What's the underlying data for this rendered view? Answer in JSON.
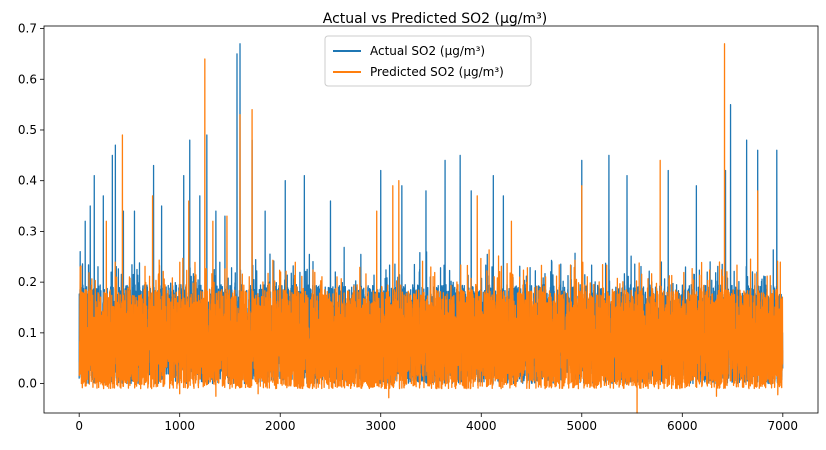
{
  "chart_data": {
    "type": "line",
    "title": "Actual vs Predicted SO2 (µg/m³)",
    "xlabel": "",
    "ylabel": "",
    "xlim": [
      -350,
      7350
    ],
    "ylim": [
      -0.058,
      0.705
    ],
    "x_ticks": [
      0,
      1000,
      2000,
      3000,
      4000,
      5000,
      6000,
      7000
    ],
    "x_tick_labels": [
      "0",
      "1000",
      "2000",
      "3000",
      "4000",
      "5000",
      "6000",
      "7000"
    ],
    "y_ticks": [
      0.0,
      0.1,
      0.2,
      0.3,
      0.4,
      0.5,
      0.6,
      0.7
    ],
    "y_tick_labels": [
      "0.0",
      "0.1",
      "0.2",
      "0.3",
      "0.4",
      "0.5",
      "0.6",
      "0.7"
    ],
    "grid": false,
    "legend_position": "top-center",
    "series": [
      {
        "name": "Actual SO2 (µg/m³)",
        "color": "#1f77b4",
        "n_points": 7000,
        "baseline_range": [
          0.0,
          0.26
        ],
        "peaks": [
          {
            "x": 10,
            "y": 0.26
          },
          {
            "x": 60,
            "y": 0.32
          },
          {
            "x": 110,
            "y": 0.35
          },
          {
            "x": 150,
            "y": 0.41
          },
          {
            "x": 240,
            "y": 0.37
          },
          {
            "x": 330,
            "y": 0.45
          },
          {
            "x": 360,
            "y": 0.47
          },
          {
            "x": 440,
            "y": 0.34
          },
          {
            "x": 550,
            "y": 0.34
          },
          {
            "x": 740,
            "y": 0.43
          },
          {
            "x": 820,
            "y": 0.35
          },
          {
            "x": 1040,
            "y": 0.41
          },
          {
            "x": 1100,
            "y": 0.48
          },
          {
            "x": 1200,
            "y": 0.37
          },
          {
            "x": 1270,
            "y": 0.49
          },
          {
            "x": 1360,
            "y": 0.34
          },
          {
            "x": 1450,
            "y": 0.33
          },
          {
            "x": 1570,
            "y": 0.65
          },
          {
            "x": 1600,
            "y": 0.67
          },
          {
            "x": 1720,
            "y": 0.48
          },
          {
            "x": 1850,
            "y": 0.34
          },
          {
            "x": 2050,
            "y": 0.4
          },
          {
            "x": 2240,
            "y": 0.41
          },
          {
            "x": 2500,
            "y": 0.36
          },
          {
            "x": 3000,
            "y": 0.42
          },
          {
            "x": 3210,
            "y": 0.39
          },
          {
            "x": 3450,
            "y": 0.38
          },
          {
            "x": 3640,
            "y": 0.44
          },
          {
            "x": 3790,
            "y": 0.45
          },
          {
            "x": 3900,
            "y": 0.38
          },
          {
            "x": 4120,
            "y": 0.41
          },
          {
            "x": 4220,
            "y": 0.37
          },
          {
            "x": 5000,
            "y": 0.44
          },
          {
            "x": 5270,
            "y": 0.45
          },
          {
            "x": 5450,
            "y": 0.41
          },
          {
            "x": 5860,
            "y": 0.42
          },
          {
            "x": 6140,
            "y": 0.39
          },
          {
            "x": 6430,
            "y": 0.42
          },
          {
            "x": 6480,
            "y": 0.55
          },
          {
            "x": 6640,
            "y": 0.48
          },
          {
            "x": 6750,
            "y": 0.46
          },
          {
            "x": 6940,
            "y": 0.46
          }
        ]
      },
      {
        "name": "Predicted SO2 (µg/m³)",
        "color": "#ff7f0e",
        "n_points": 7000,
        "baseline_range": [
          -0.01,
          0.25
        ],
        "peaks": [
          {
            "x": 10,
            "y": 0.23
          },
          {
            "x": 270,
            "y": 0.32
          },
          {
            "x": 430,
            "y": 0.49
          },
          {
            "x": 730,
            "y": 0.37
          },
          {
            "x": 1090,
            "y": 0.36
          },
          {
            "x": 1250,
            "y": 0.64
          },
          {
            "x": 1330,
            "y": 0.32
          },
          {
            "x": 1470,
            "y": 0.33
          },
          {
            "x": 1600,
            "y": 0.53
          },
          {
            "x": 1720,
            "y": 0.54
          },
          {
            "x": 2960,
            "y": 0.34
          },
          {
            "x": 3120,
            "y": 0.39
          },
          {
            "x": 3180,
            "y": 0.4
          },
          {
            "x": 3960,
            "y": 0.37
          },
          {
            "x": 4300,
            "y": 0.32
          },
          {
            "x": 5000,
            "y": 0.39
          },
          {
            "x": 5780,
            "y": 0.44
          },
          {
            "x": 6420,
            "y": 0.67
          },
          {
            "x": 6750,
            "y": 0.38
          }
        ],
        "troughs": [
          {
            "x": 1000,
            "y": -0.02
          },
          {
            "x": 1360,
            "y": -0.025
          },
          {
            "x": 1780,
            "y": -0.02
          },
          {
            "x": 3080,
            "y": -0.028
          },
          {
            "x": 5550,
            "y": -0.058
          },
          {
            "x": 6340,
            "y": -0.025
          },
          {
            "x": 6950,
            "y": -0.022
          }
        ]
      }
    ]
  }
}
